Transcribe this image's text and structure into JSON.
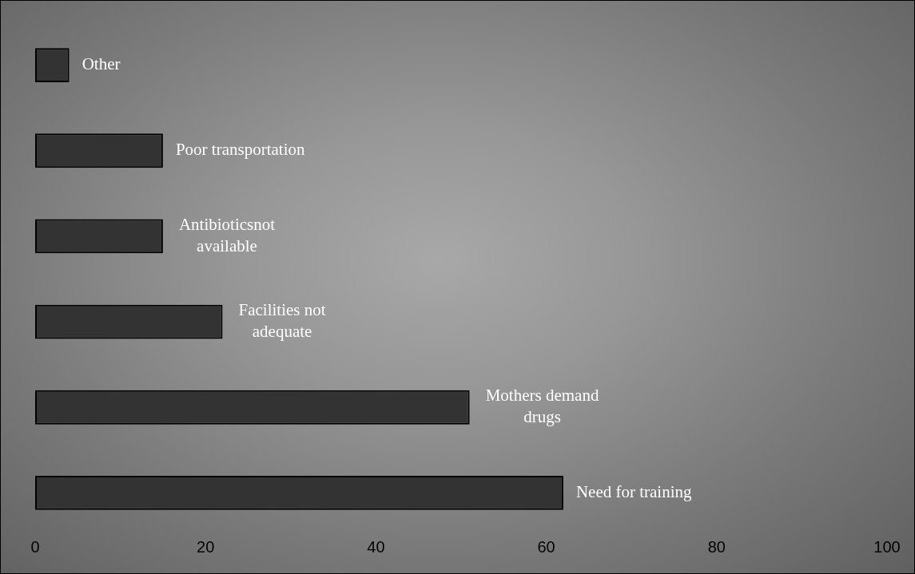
{
  "chart_data": {
    "type": "bar",
    "orientation": "horizontal",
    "categories": [
      "Other",
      "Poor transportation",
      "Antibioticsnot available",
      "Facilities not adequate",
      "Mothers demand drugs",
      "Need for training"
    ],
    "values": [
      4,
      15,
      15,
      22,
      51,
      62
    ],
    "color": "#333333",
    "xlim": [
      0,
      100
    ],
    "xticks": [
      0,
      20,
      40,
      60,
      80,
      100
    ],
    "grid": false,
    "legend": false
  }
}
